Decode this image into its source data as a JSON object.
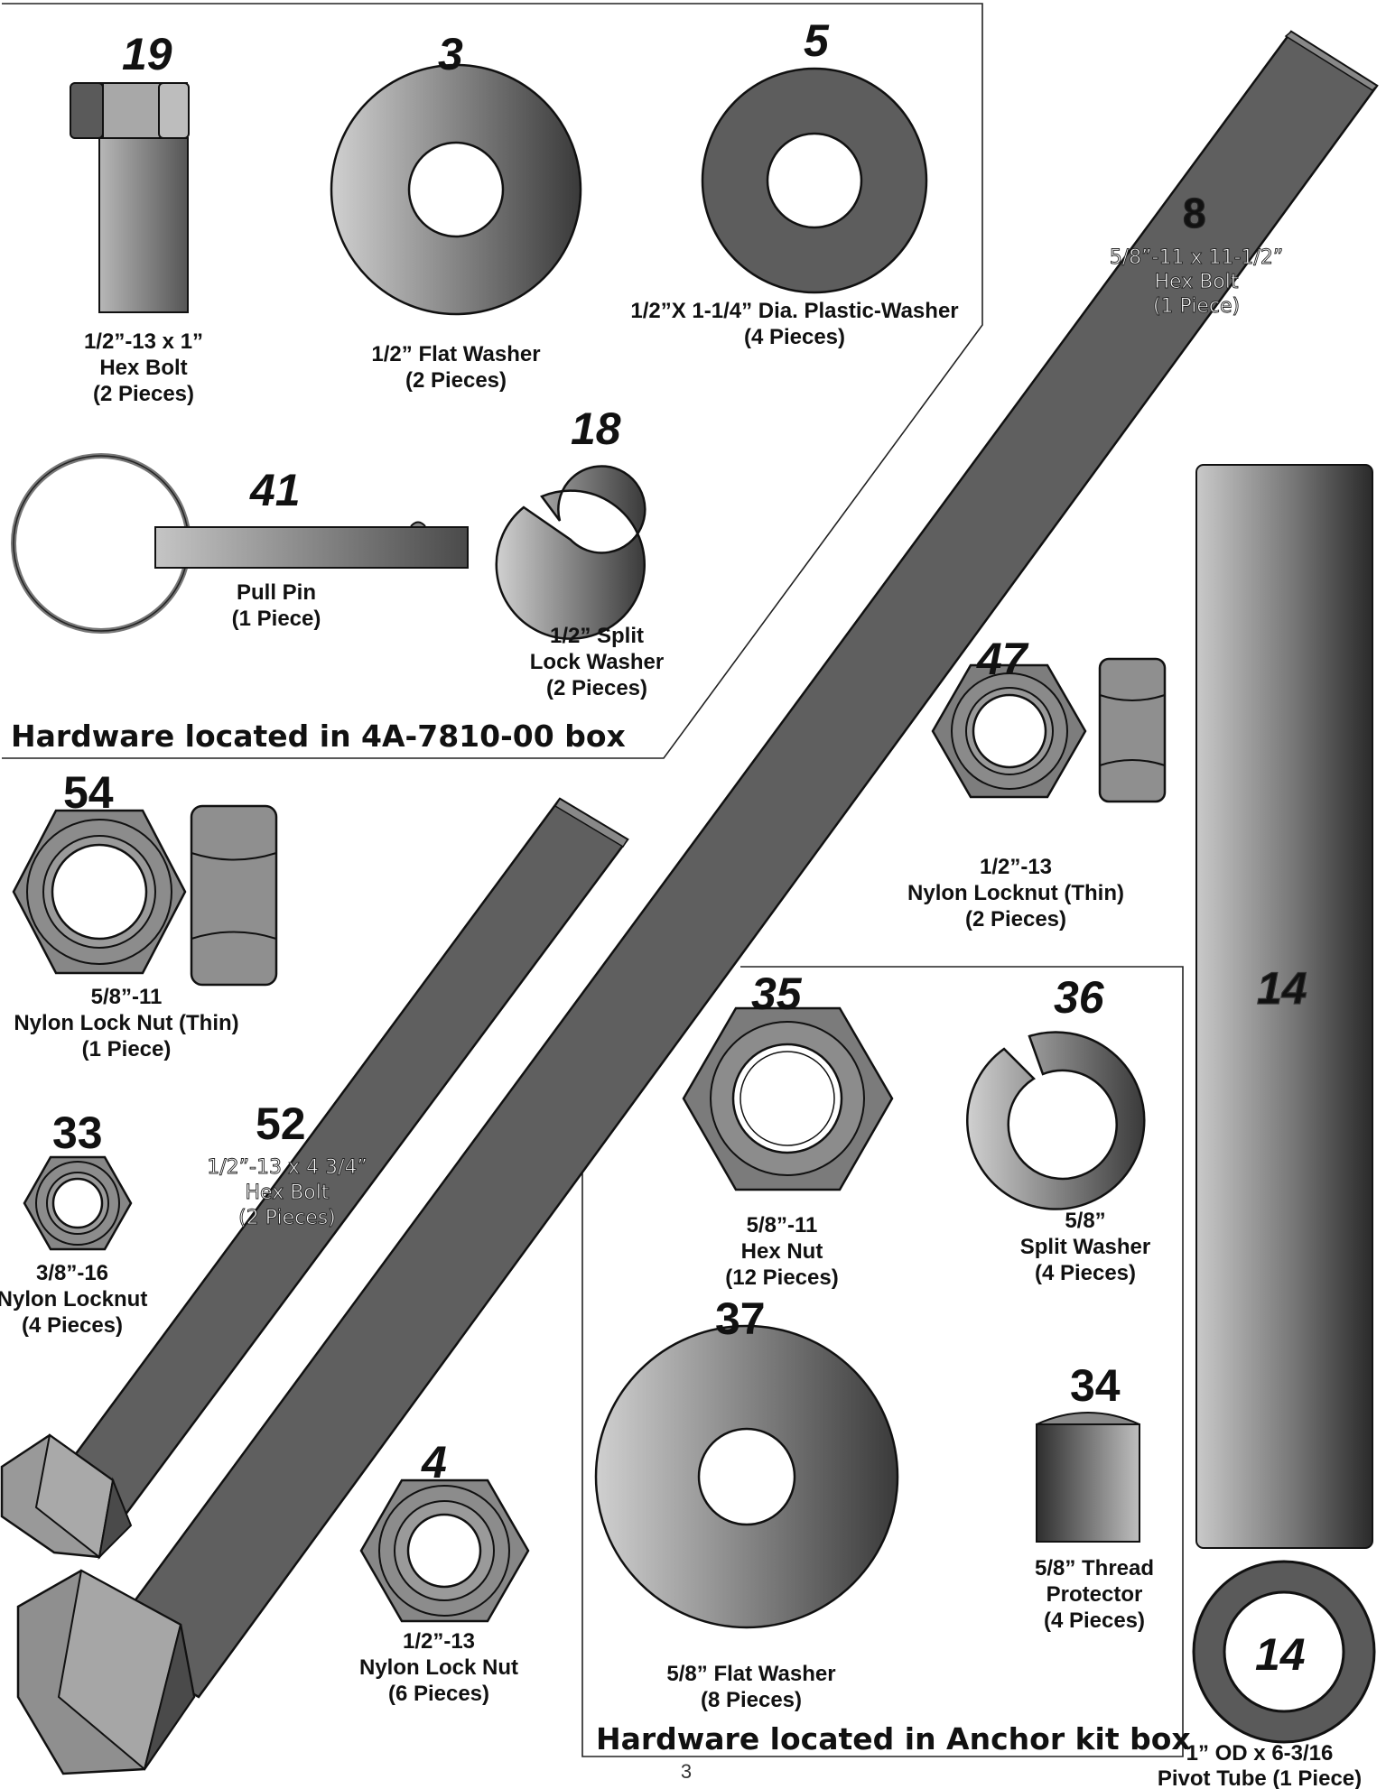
{
  "page_number": "3",
  "boxes": {
    "box_a_label": "Hardware located in 4A-7810-00 box",
    "box_b_label": "Hardware located in Anchor kit box"
  },
  "parts": {
    "p19": {
      "num": "19",
      "l1": "1/2”-13 x 1”",
      "l2": "Hex Bolt",
      "l3": "(2 Pieces)"
    },
    "p3": {
      "num": "3",
      "l1": "1/2” Flat Washer",
      "l2": "(2 Pieces)"
    },
    "p5": {
      "num": "5",
      "l1": "1/2”X 1-1/4” Dia. Plastic-Washer",
      "l2": "(4 Pieces)"
    },
    "p41": {
      "num": "41",
      "l1": "Pull Pin",
      "l2": "(1 Piece)"
    },
    "p18": {
      "num": "18",
      "l1": "1/2” Split",
      "l2": "Lock Washer",
      "l3": "(2 Pieces)"
    },
    "p8": {
      "num": "8",
      "l1": "5/8”-11 x 11-1/2”",
      "l2": "Hex Bolt",
      "l3": "(1 Piece)"
    },
    "p47": {
      "num": "47",
      "l1": "1/2”-13",
      "l2": "Nylon Locknut (Thin)",
      "l3": "(2 Pieces)"
    },
    "p54": {
      "num": "54",
      "l1": "5/8”-11",
      "l2": "Nylon Lock Nut (Thin)",
      "l3": "(1 Piece)"
    },
    "p33": {
      "num": "33",
      "l1": "3/8”-16",
      "l2": "Nylon Locknut",
      "l3": "(4 Pieces)"
    },
    "p52": {
      "num": "52",
      "l1": "1/2”-13 x 4 3/4”",
      "l2": "Hex Bolt",
      "l3": "(2 Pieces)"
    },
    "p4": {
      "num": "4",
      "l1": "1/2”-13",
      "l2": "Nylon Lock Nut",
      "l3": "(6 Pieces)"
    },
    "p35": {
      "num": "35",
      "l1": "5/8”-11",
      "l2": "Hex Nut",
      "l3": "(12 Pieces)"
    },
    "p36": {
      "num": "36",
      "l1": "5/8”",
      "l2": "Split Washer",
      "l3": "(4 Pieces)"
    },
    "p37": {
      "num": "37",
      "l1": "5/8” Flat Washer",
      "l2": "(8 Pieces)"
    },
    "p34": {
      "num": "34",
      "l1": "5/8” Thread",
      "l2": "Protector",
      "l3": "(4 Pieces)"
    },
    "p14": {
      "num": "14",
      "num_b": "14",
      "l1": "1” OD x 6-3/16",
      "l2": "Pivot Tube (1 Piece)"
    }
  }
}
